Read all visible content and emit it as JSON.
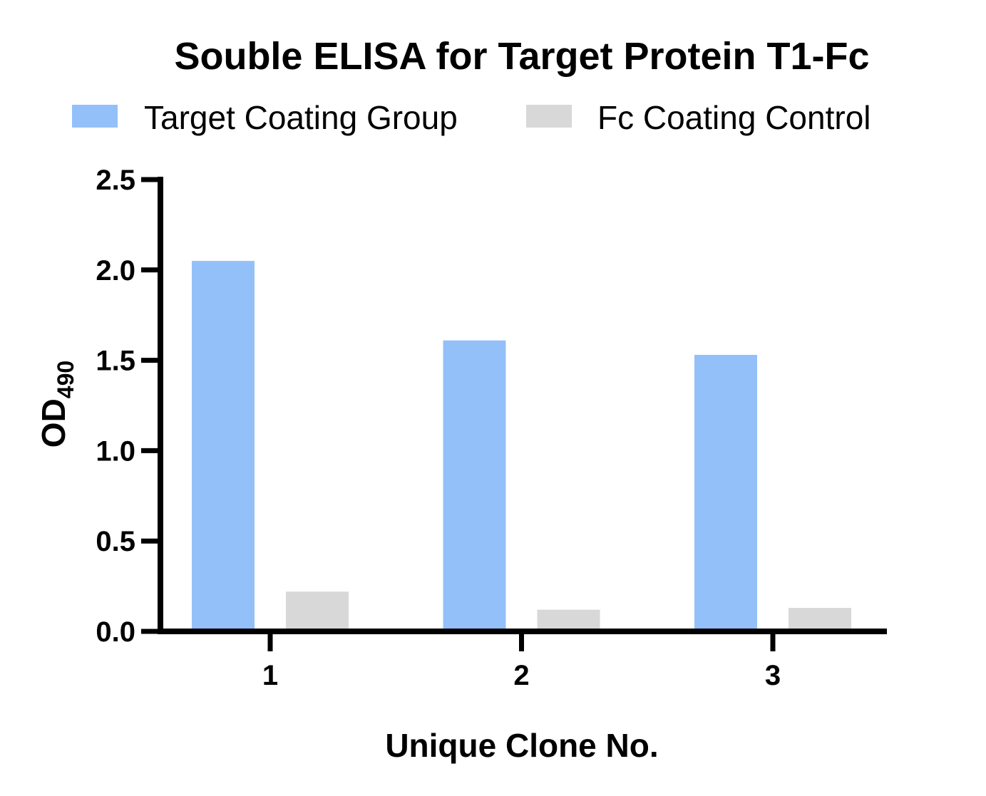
{
  "chart_data": {
    "type": "bar",
    "title": "Souble ELISA for Target Protein T1-Fc",
    "xlabel": "Unique Clone No.",
    "ylabel": "OD",
    "ylabel_subscript": "490",
    "categories": [
      "1",
      "2",
      "3"
    ],
    "series": [
      {
        "name": "Target Coating Group",
        "color": "#94c0f9",
        "values": [
          2.05,
          1.61,
          1.53
        ]
      },
      {
        "name": "Fc Coating Control",
        "color": "#d8d8d8",
        "values": [
          0.22,
          0.12,
          0.13
        ]
      }
    ],
    "ylim": [
      0,
      2.5
    ],
    "yticks": [
      "0.0",
      "0.5",
      "1.0",
      "1.5",
      "2.0",
      "2.5"
    ],
    "grid": false,
    "legend": "top"
  }
}
